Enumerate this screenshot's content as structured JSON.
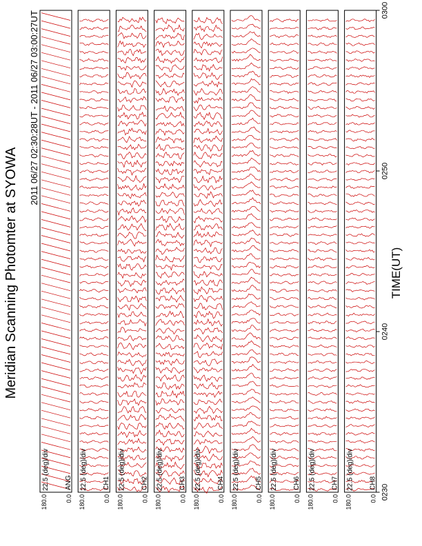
{
  "title": "Meridian Scanning Photomter at SYOWA",
  "subtitle": "2011 06/27 02:30:28UT - 2011 06/27 03:00:27UT",
  "xlabel": "TIME(UT)",
  "trace_color": "#cc0000",
  "chart_data": {
    "type": "line",
    "title": "Meridian Scanning Photomter at SYOWA",
    "subtitle": "2011 06/27 02:30:28UT - 2011 06/27 03:00:27UT",
    "xlabel": "TIME(UT)",
    "x_ticks": [
      "0230",
      "0240",
      "0250",
      "0300"
    ],
    "x_tick_values": [
      0,
      10,
      20,
      30
    ],
    "xlim": [
      0,
      30
    ],
    "scale_label": "22.5 (deg)/div",
    "y_tick_labels": [
      "180.0",
      "0.0"
    ],
    "panels": [
      {
        "name": "ANG",
        "scale": "22.5 (deg)/div",
        "style": "sawtooth",
        "ymax": "180.0",
        "ymin": "0.0"
      },
      {
        "name": "CH1",
        "scale": "22.5 (deg)/div",
        "style": "quiet",
        "ymax": "180.0",
        "ymin": "0.0"
      },
      {
        "name": "CH2",
        "scale": "22.5 (deg)/div",
        "style": "noisy",
        "ymax": "180.0",
        "ymin": "0.0"
      },
      {
        "name": "CH3",
        "scale": "22.5 (deg)/div",
        "style": "noisy",
        "ymax": "180.0",
        "ymin": "0.0"
      },
      {
        "name": "CH4",
        "scale": "22.5 (deg)/div",
        "style": "noisy",
        "ymax": "180.0",
        "ymin": "0.0"
      },
      {
        "name": "CH5",
        "scale": "22.5 (deg)/div",
        "style": "peaked",
        "ymax": "180.0",
        "ymin": "0.0"
      },
      {
        "name": "CH6",
        "scale": "22.5 (deg)/div",
        "style": "quiet",
        "ymax": "180.0",
        "ymin": "0.0"
      },
      {
        "name": "CH7",
        "scale": "22.5 (deg)/div",
        "style": "quiet",
        "ymax": "180.0",
        "ymin": "0.0"
      },
      {
        "name": "CH8",
        "scale": "22.5 (deg)/div",
        "style": "quiet",
        "ymax": "180.0",
        "ymin": "0.0"
      }
    ]
  }
}
